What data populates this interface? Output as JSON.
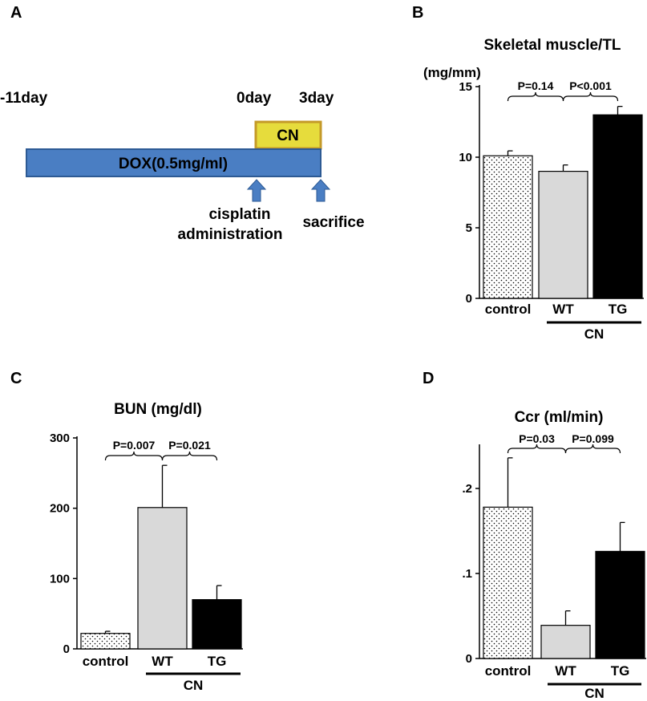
{
  "panels": {
    "A": {
      "letter": "A",
      "day_start": "-11day",
      "day_zero": "0day",
      "day_end": "3day",
      "cn_box_label": "CN",
      "dox_bar_label": "DOX(0.5mg/ml)",
      "arrow1_line1": "cisplatin",
      "arrow1_line2": "administration",
      "arrow2_label": "sacrifice",
      "colors": {
        "dox_fill": "#4a7ec3",
        "dox_stroke": "#2d5a94",
        "cn_fill": "#e6dc3c",
        "cn_stroke": "#c49a28",
        "arrow_fill": "#4a7ec3"
      }
    },
    "B": {
      "letter": "B"
    },
    "C": {
      "letter": "C"
    },
    "D": {
      "letter": "D"
    }
  },
  "chart_data": [
    {
      "panel": "B",
      "type": "bar",
      "title": "Skeletal muscle/TL",
      "ylabel": "(mg/mm)",
      "categories": [
        "control",
        "WT",
        "TG"
      ],
      "group_label": "CN",
      "values": [
        10.1,
        9.0,
        13.0
      ],
      "errors": [
        0.35,
        0.45,
        0.6
      ],
      "ylim": [
        0,
        15
      ],
      "yticks": [
        0,
        5,
        10,
        15
      ],
      "ytick_labels": [
        "0",
        "5",
        "10",
        "15"
      ],
      "fills": [
        "dotted",
        "#d9d9d9",
        "#000000"
      ],
      "comparisons": [
        {
          "from": 0,
          "to": 1,
          "label": "P=0.14"
        },
        {
          "from": 1,
          "to": 2,
          "label": "P<0.001"
        }
      ]
    },
    {
      "panel": "C",
      "type": "bar",
      "title": "BUN (mg/dl)",
      "ylabel": "",
      "categories": [
        "control",
        "WT",
        "TG"
      ],
      "group_label": "CN",
      "values": [
        22,
        201,
        70
      ],
      "errors": [
        3,
        60,
        20
      ],
      "ylim": [
        0,
        300
      ],
      "yticks": [
        0,
        100,
        200,
        300
      ],
      "ytick_labels": [
        "0",
        "100",
        "200",
        "300"
      ],
      "fills": [
        "dotted",
        "#d9d9d9",
        "#000000"
      ],
      "comparisons": [
        {
          "from": 0,
          "to": 1,
          "label": "P=0.007"
        },
        {
          "from": 1,
          "to": 2,
          "label": "P=0.021"
        }
      ]
    },
    {
      "panel": "D",
      "type": "bar",
      "title": "Ccr (ml/min)",
      "ylabel": "",
      "categories": [
        "control",
        "WT",
        "TG"
      ],
      "group_label": "CN",
      "values": [
        0.178,
        0.039,
        0.126
      ],
      "errors": [
        0.058,
        0.017,
        0.034
      ],
      "ylim": [
        0,
        0.25
      ],
      "yticks": [
        0,
        0.1,
        0.2
      ],
      "ytick_labels": [
        "0",
        ".1",
        ".2"
      ],
      "fills": [
        "dotted",
        "#d9d9d9",
        "#000000"
      ],
      "comparisons": [
        {
          "from": 0,
          "to": 1,
          "label": "P=0.03"
        },
        {
          "from": 1,
          "to": 2,
          "label": "P=0.099"
        }
      ]
    }
  ]
}
